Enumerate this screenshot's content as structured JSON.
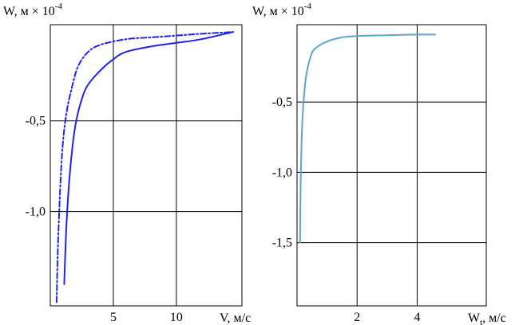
{
  "chart_data": [
    {
      "type": "line",
      "ylabel": "W, м × 10",
      "ylabel_exp": "-4",
      "xlabel": "V, м/с",
      "xlim": [
        0,
        15.2
      ],
      "ylim": [
        -1.52,
        0.03
      ],
      "xticks": [
        5,
        10
      ],
      "xtick_labels": [
        "5",
        "10"
      ],
      "yticks": [
        -0.5,
        -1.0
      ],
      "ytick_labels": [
        "-0,5",
        "-1,0"
      ],
      "grid": true,
      "series": [
        {
          "style": "solid",
          "color": "#2222ee",
          "x": [
            1.1,
            1.3,
            1.6,
            2.0,
            2.5,
            3.0,
            4.0,
            5.0,
            6.0,
            8.0,
            10.0,
            12.0,
            14.5
          ],
          "y": [
            -1.4,
            -1.05,
            -0.75,
            -0.52,
            -0.38,
            -0.3,
            -0.22,
            -0.16,
            -0.12,
            -0.09,
            -0.07,
            -0.05,
            -0.01
          ]
        },
        {
          "style": "dashdot",
          "color": "#2222ee",
          "x": [
            0.5,
            0.6,
            0.8,
            1.0,
            1.3,
            1.7,
            2.2,
            3.0,
            4.0,
            6.0,
            8.0,
            10.0,
            12.0,
            14.5
          ],
          "y": [
            -1.5,
            -1.2,
            -0.85,
            -0.62,
            -0.45,
            -0.32,
            -0.2,
            -0.12,
            -0.08,
            -0.05,
            -0.04,
            -0.03,
            -0.02,
            -0.01
          ]
        }
      ]
    },
    {
      "type": "line",
      "ylabel": "W, м × 10",
      "ylabel_exp": "-4",
      "xlabel": "W",
      "xlabel_sub": "t",
      "xlabel_unit": ", м/с",
      "xlim": [
        0,
        6.3
      ],
      "ylim": [
        -1.95,
        0.05
      ],
      "xticks": [
        2,
        4
      ],
      "xtick_labels": [
        "2",
        "4"
      ],
      "yticks": [
        -0.5,
        -1.0,
        -1.5
      ],
      "ytick_labels": [
        "-0,5",
        "-1,0",
        "-1,5"
      ],
      "grid": true,
      "series": [
        {
          "style": "solid",
          "color": "#5aa6cf",
          "x": [
            0.1,
            0.12,
            0.15,
            0.2,
            0.3,
            0.45,
            0.6,
            1.0,
            1.5,
            2.0,
            3.0,
            4.0,
            4.6
          ],
          "y": [
            -1.5,
            -1.1,
            -0.8,
            -0.55,
            -0.32,
            -0.18,
            -0.12,
            -0.07,
            -0.04,
            -0.03,
            -0.025,
            -0.02,
            -0.02
          ]
        }
      ]
    }
  ]
}
